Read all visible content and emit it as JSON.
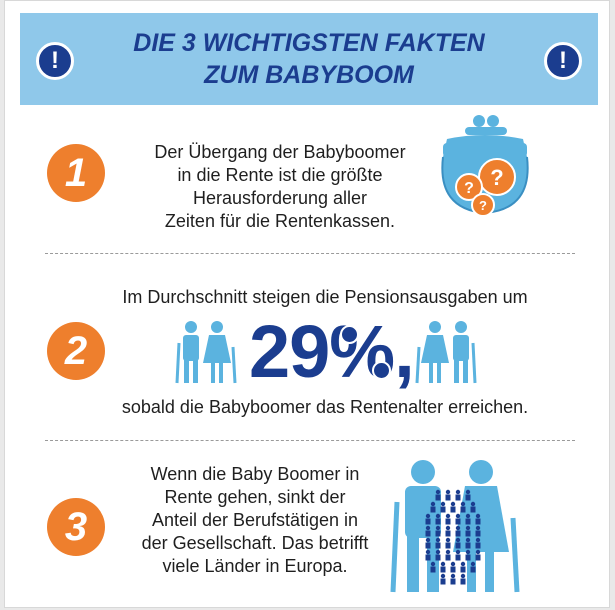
{
  "header": {
    "title_line1": "DIE 3 WICHTIGSTEN FAKTEN",
    "title_line2": "ZUM BABYBOOM",
    "icon_left": "exclamation-icon",
    "icon_right": "exclamation-icon",
    "excl_glyph": "!"
  },
  "facts": [
    {
      "number": "1",
      "lines": [
        "Der Übergang der Babyboomer",
        "in die Rente ist die größte",
        "Herausforderung aller",
        "Zeiten für die Rentenkassen."
      ],
      "icon": "coin-purse-question-icon"
    },
    {
      "number": "2",
      "line_top": "Im Durchschnitt steigen die Pensionsausgaben um",
      "percent": "29%,",
      "line_bottom": "sobald die Babyboomer das Rentenalter erreichen.",
      "icon": "elderly-couple-icon"
    },
    {
      "number": "3",
      "lines": [
        "Wenn die Baby Boomer in",
        "Rente gehen, sinkt der",
        "Anteil der Berufstätigen in",
        "der Gesellschaft. Das betrifft",
        "viele Länder in Europa."
      ],
      "icon": "elderly-couple-workforce-icon"
    }
  ],
  "colors": {
    "header_bg": "#8fc8ea",
    "title_blue": "#1b3d8f",
    "orange": "#ee7f2d",
    "light_blue": "#5bb3df"
  }
}
